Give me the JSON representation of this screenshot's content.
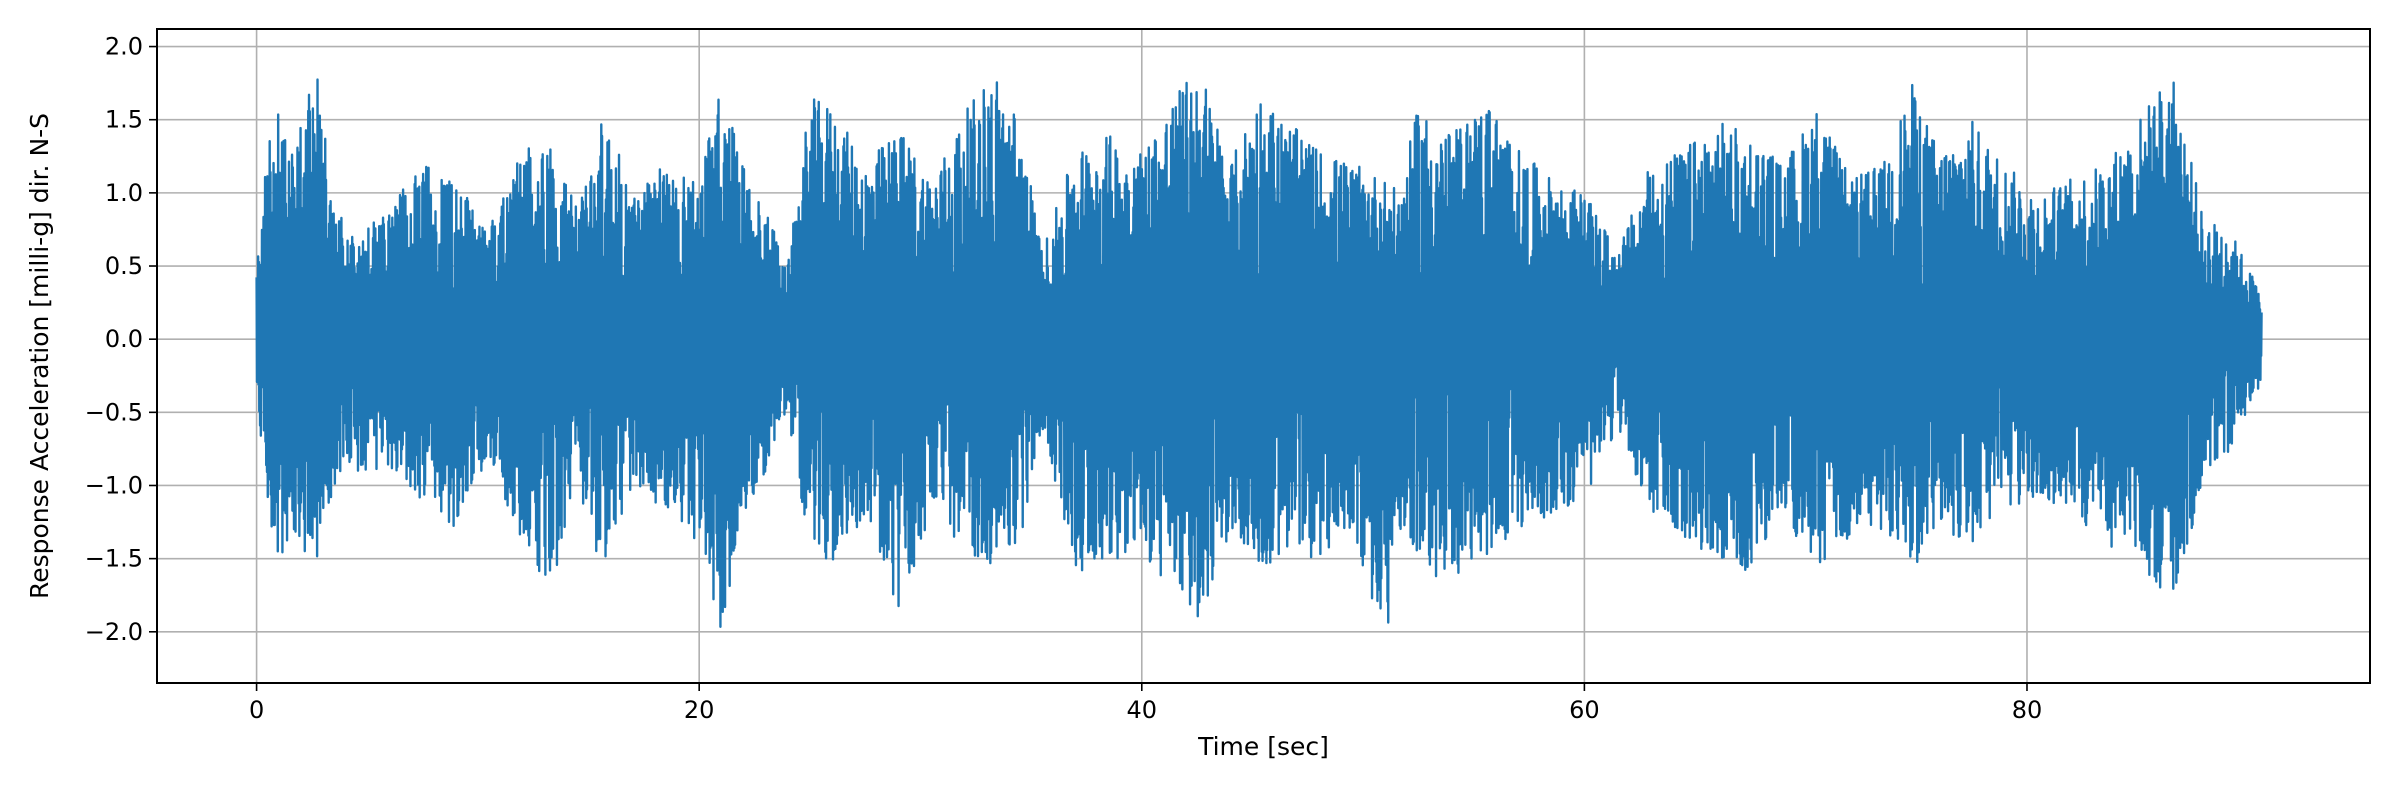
{
  "chart_data": {
    "type": "line",
    "xlabel": "Time [sec]",
    "ylabel": "Response Acceleration [milli-g] dir. N-S",
    "xlim": [
      -4.5,
      95.5
    ],
    "ylim": [
      -2.35,
      2.12
    ],
    "xticks": [
      0,
      20,
      40,
      60,
      80
    ],
    "xtick_labels": [
      "0",
      "20",
      "40",
      "60",
      "80"
    ],
    "yticks": [
      2.0,
      1.5,
      1.0,
      0.5,
      0.0,
      -0.5,
      -1.0,
      -1.5,
      -2.0
    ],
    "ytick_labels": [
      "2.0",
      "1.5",
      "1.0",
      "0.5",
      "0.0",
      "−0.5",
      "−1.0",
      "−1.5",
      "−2.0"
    ],
    "grid": true,
    "series": [
      {
        "color": "#1f77b4",
        "x_range": [
          0,
          90.6
        ],
        "envelope": {
          "x": [
            0,
            0.5,
            1,
            1.5,
            2,
            2.7,
            3.5,
            4.5,
            6,
            7.5,
            9,
            10.5,
            12,
            13.3,
            14.5,
            15.7,
            17,
            18.5,
            20,
            21,
            22,
            23,
            24,
            25,
            26,
            27.5,
            29,
            30.5,
            32,
            33.3,
            34.5,
            35.5,
            37,
            38.5,
            40,
            41.2,
            42.6,
            44,
            45.3,
            46.5,
            48,
            49.5,
            51,
            51.6,
            52.5,
            54,
            55.6,
            57,
            58.5,
            60,
            61.5,
            63,
            64.5,
            66,
            67.5,
            69,
            70.5,
            72,
            73.5,
            74.8,
            76,
            77.5,
            79,
            80.5,
            82,
            83.5,
            85,
            86.5,
            87.2,
            88,
            89,
            90,
            90.6
          ],
          "upper": [
            0.5,
            1.3,
            1.6,
            1.2,
            1.5,
            1.85,
            0.9,
            0.7,
            0.9,
            1.2,
            1.1,
            0.8,
            1.3,
            1.35,
            0.9,
            1.55,
            1.0,
            1.2,
            1.1,
            1.75,
            1.2,
            0.9,
            0.5,
            1.65,
            1.6,
            1.2,
            1.45,
            1.1,
            1.55,
            1.85,
            1.5,
            0.6,
            1.3,
            1.4,
            1.3,
            1.6,
            1.9,
            1.2,
            1.7,
            1.5,
            1.3,
            1.2,
            1.1,
            1.0,
            1.6,
            1.4,
            1.65,
            1.3,
            1.1,
            1.0,
            0.6,
            1.2,
            1.3,
            1.5,
            1.4,
            1.2,
            1.6,
            1.1,
            1.2,
            1.75,
            1.3,
            1.5,
            1.2,
            1.0,
            1.1,
            1.2,
            1.5,
            1.85,
            1.4,
            0.8,
            0.8,
            0.5,
            0.3
          ],
          "lower": [
            -0.4,
            -1.1,
            -1.65,
            -1.3,
            -1.45,
            -1.55,
            -1.0,
            -0.9,
            -0.9,
            -1.1,
            -1.3,
            -0.8,
            -1.4,
            -1.75,
            -1.0,
            -1.65,
            -1.0,
            -1.2,
            -1.4,
            -2.05,
            -1.2,
            -0.9,
            -0.5,
            -1.45,
            -1.55,
            -1.2,
            -1.9,
            -1.2,
            -1.45,
            -1.55,
            -1.4,
            -0.6,
            -1.6,
            -1.5,
            -1.5,
            -1.7,
            -1.95,
            -1.3,
            -1.6,
            -1.5,
            -1.5,
            -1.3,
            -2.15,
            -1.3,
            -1.55,
            -1.7,
            -1.5,
            -1.3,
            -1.2,
            -1.1,
            -0.6,
            -1.2,
            -1.4,
            -1.5,
            -1.6,
            -1.2,
            -1.6,
            -1.4,
            -1.3,
            -1.6,
            -1.3,
            -1.4,
            -1.2,
            -1.1,
            -1.2,
            -1.4,
            -1.5,
            -1.85,
            -1.5,
            -0.9,
            -0.8,
            -0.5,
            -0.3
          ]
        }
      }
    ]
  }
}
